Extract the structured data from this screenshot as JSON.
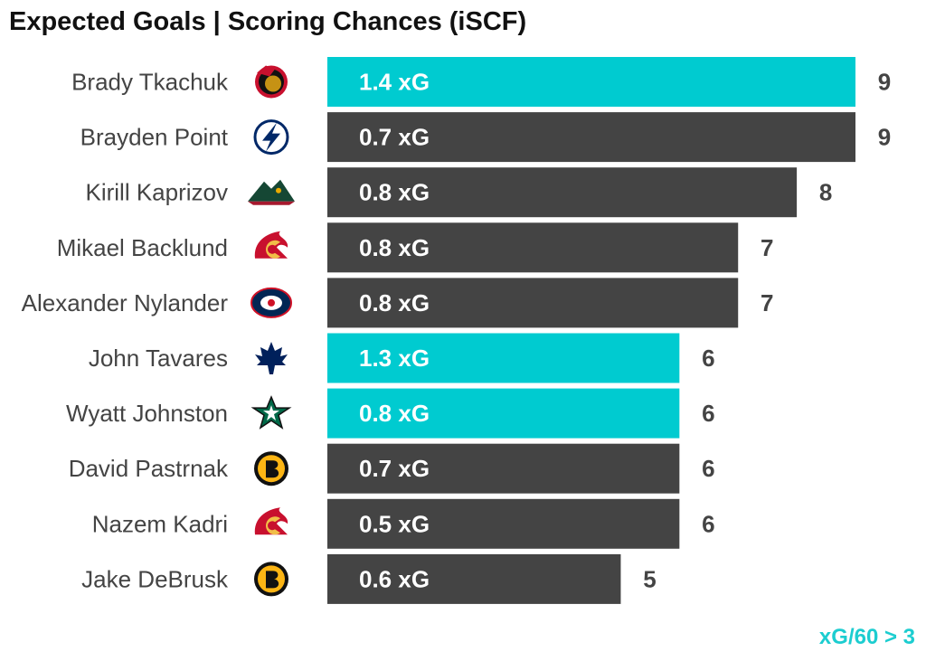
{
  "title": "Expected Goals | Scoring Chances (iSCF)",
  "note": "xG/60 > 3",
  "colors": {
    "highlight": "#00cbd0",
    "base": "#444444",
    "label": "#444444",
    "note": "#1ccdd0"
  },
  "chart_data": {
    "type": "bar",
    "orientation": "horizontal",
    "title": "Expected Goals | Scoring Chances (iSCF)",
    "categories": [
      "Brady Tkachuk",
      "Brayden Point",
      "Kirill Kaprizov",
      "Mikael Backlund",
      "Alexander Nylander",
      "John Tavares",
      "Wyatt Johnston",
      "David Pastrnak",
      "Nazem Kadri",
      "Jake DeBrusk"
    ],
    "teams": [
      "senators-logo-icon",
      "lightning-logo-icon",
      "wild-logo-icon",
      "flames-logo-icon",
      "blue-jackets-logo-icon",
      "maple-leafs-logo-icon",
      "stars-logo-icon",
      "bruins-logo-icon",
      "flames-logo-icon",
      "bruins-logo-icon"
    ],
    "values": [
      9,
      9,
      8,
      7,
      7,
      6,
      6,
      6,
      6,
      5
    ],
    "xg_labels": [
      "1.4 xG",
      "0.7 xG",
      "0.8 xG",
      "0.8 xG",
      "0.8 xG",
      "1.3 xG",
      "0.8 xG",
      "0.7 xG",
      "0.5 xG",
      "0.6 xG"
    ],
    "highlighted": [
      true,
      false,
      false,
      false,
      false,
      true,
      true,
      false,
      false,
      false
    ],
    "legend": "xG/60 > 3",
    "xlim": [
      0,
      9
    ],
    "grid": false
  }
}
